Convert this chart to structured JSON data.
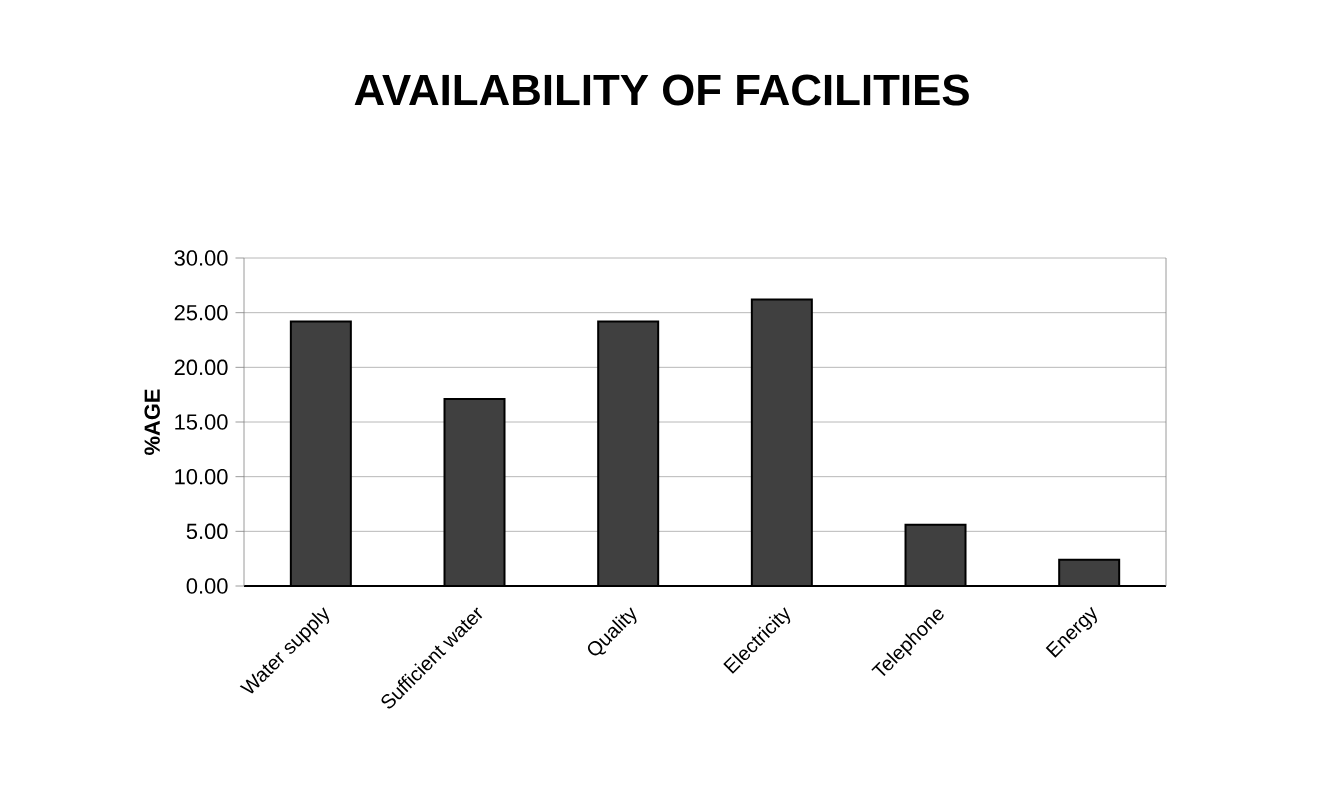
{
  "chart_data": {
    "type": "bar",
    "title": "AVAILABILITY OF FACILITIES",
    "ylabel": "%AGE",
    "categories": [
      "Water supply",
      "Sufficient water",
      "Quality",
      "Electricity",
      "Telephone",
      "Energy"
    ],
    "values": [
      24.2,
      17.1,
      24.2,
      26.2,
      5.6,
      2.4
    ],
    "color": "#404040",
    "ylim": [
      0,
      30
    ],
    "yticks": [
      {
        "value": 0,
        "label": "0.00"
      },
      {
        "value": 5,
        "label": "5.00"
      },
      {
        "value": 10,
        "label": "10.00"
      },
      {
        "value": 15,
        "label": "15.00"
      },
      {
        "value": 20,
        "label": "20.00"
      },
      {
        "value": 25,
        "label": "25.00"
      },
      {
        "value": 30,
        "label": "30.00"
      }
    ],
    "grid": "y"
  }
}
